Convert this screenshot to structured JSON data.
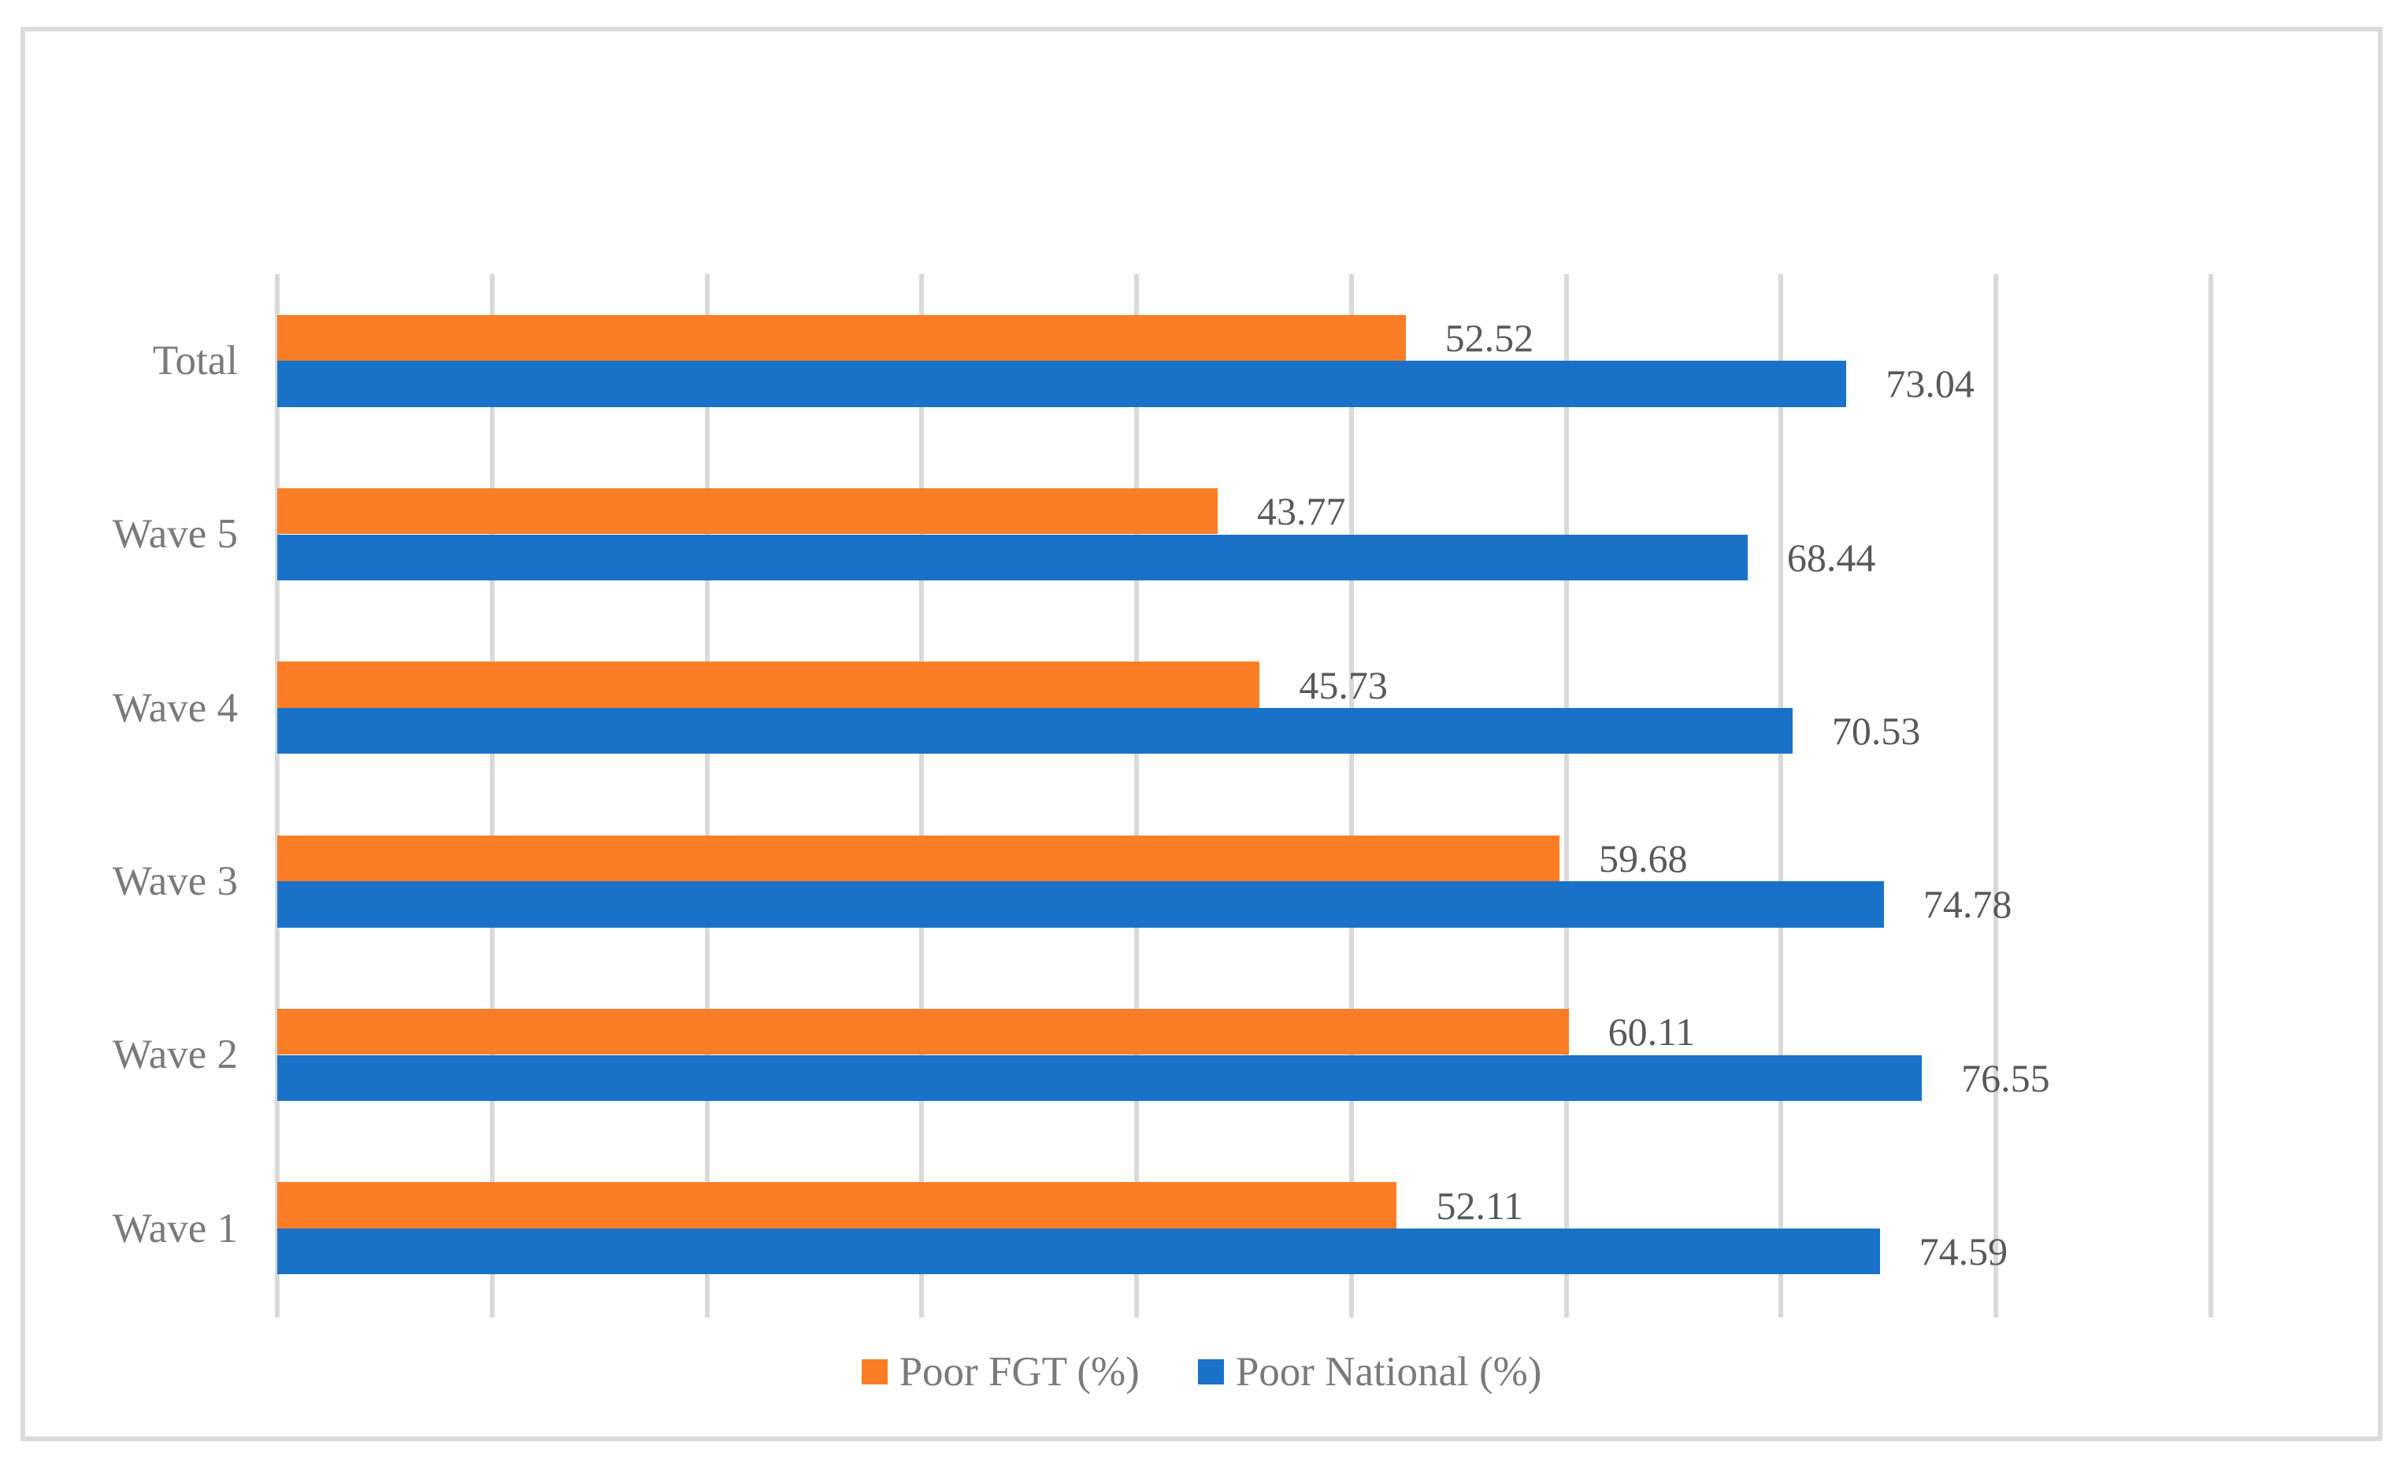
{
  "figure": {
    "background": "#FFFFFF",
    "frame_border_color": "#DBDBDB"
  },
  "chart_data": {
    "type": "bar",
    "orientation": "horizontal",
    "title": "",
    "categories": [
      "Total",
      "Wave 5",
      "Wave 4",
      "Wave 3",
      "Wave 2",
      "Wave 1"
    ],
    "categories_order": "top-to-bottom",
    "series": [
      {
        "name": "Poor FGT (%)",
        "color": "#FB7D26",
        "values": [
          52.52,
          43.77,
          45.73,
          59.68,
          60.11,
          52.11
        ],
        "labels": [
          "52.52",
          "43.77",
          "45.73",
          "59.68",
          "60.11",
          "52.11"
        ]
      },
      {
        "name": "Poor National (%)",
        "color": "#1A72C8",
        "values": [
          73.04,
          68.44,
          70.53,
          74.78,
          76.55,
          74.59
        ],
        "labels": [
          "73.04",
          "68.44",
          "70.53",
          "74.78",
          "76.55",
          "74.59"
        ]
      }
    ],
    "xlim": [
      0,
      90
    ],
    "gridline_step": 10,
    "grid": true,
    "x_tick_labels_visible": false,
    "data_labels_visible": true,
    "data_label_color": "#595959",
    "category_label_color": "#7A7A7A",
    "gridline_color": "#D9D9D9",
    "legend_position": "bottom"
  }
}
